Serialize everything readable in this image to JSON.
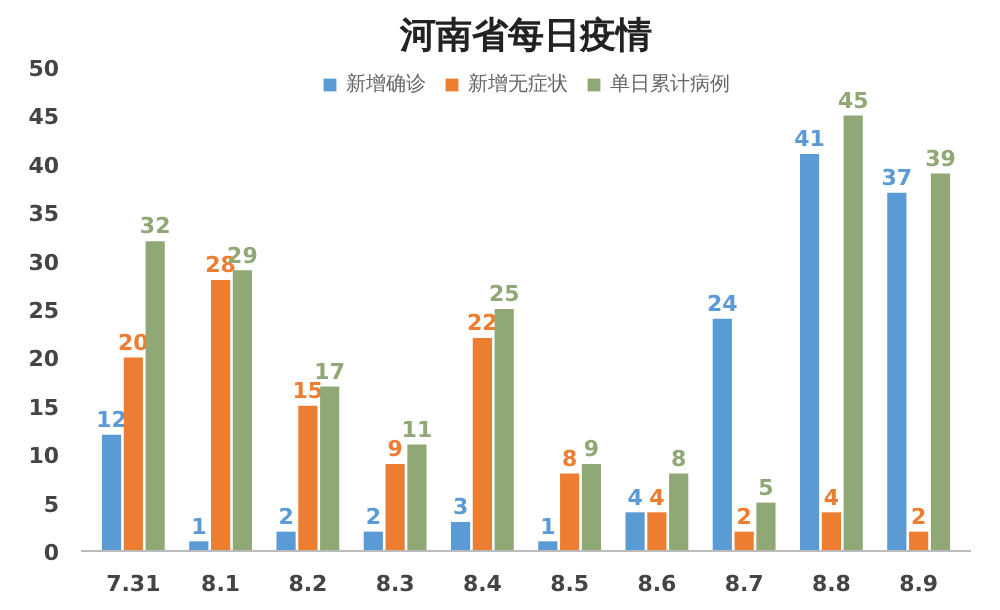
{
  "chart_data": {
    "type": "bar",
    "title": "河南省每日疫情",
    "categories": [
      "7.31",
      "8.1",
      "8.2",
      "8.3",
      "8.4",
      "8.5",
      "8.6",
      "8.7",
      "8.8",
      "8.9"
    ],
    "series": [
      {
        "name": "新增确诊",
        "color": "#5b9bd5",
        "values": [
          12,
          1,
          2,
          2,
          3,
          1,
          4,
          24,
          41,
          37
        ]
      },
      {
        "name": "新增无症状",
        "color": "#ed7d31",
        "values": [
          20,
          28,
          15,
          9,
          22,
          8,
          4,
          2,
          4,
          2
        ]
      },
      {
        "name": "单日累计病例",
        "color": "#8fa876",
        "values": [
          32,
          29,
          17,
          11,
          25,
          9,
          8,
          5,
          45,
          39
        ]
      }
    ],
    "ylim": [
      0,
      50
    ],
    "yticks": [
      0,
      5,
      10,
      15,
      20,
      25,
      30,
      35,
      40,
      45,
      50
    ],
    "grid": false,
    "legend": "top",
    "data_labels": true
  }
}
